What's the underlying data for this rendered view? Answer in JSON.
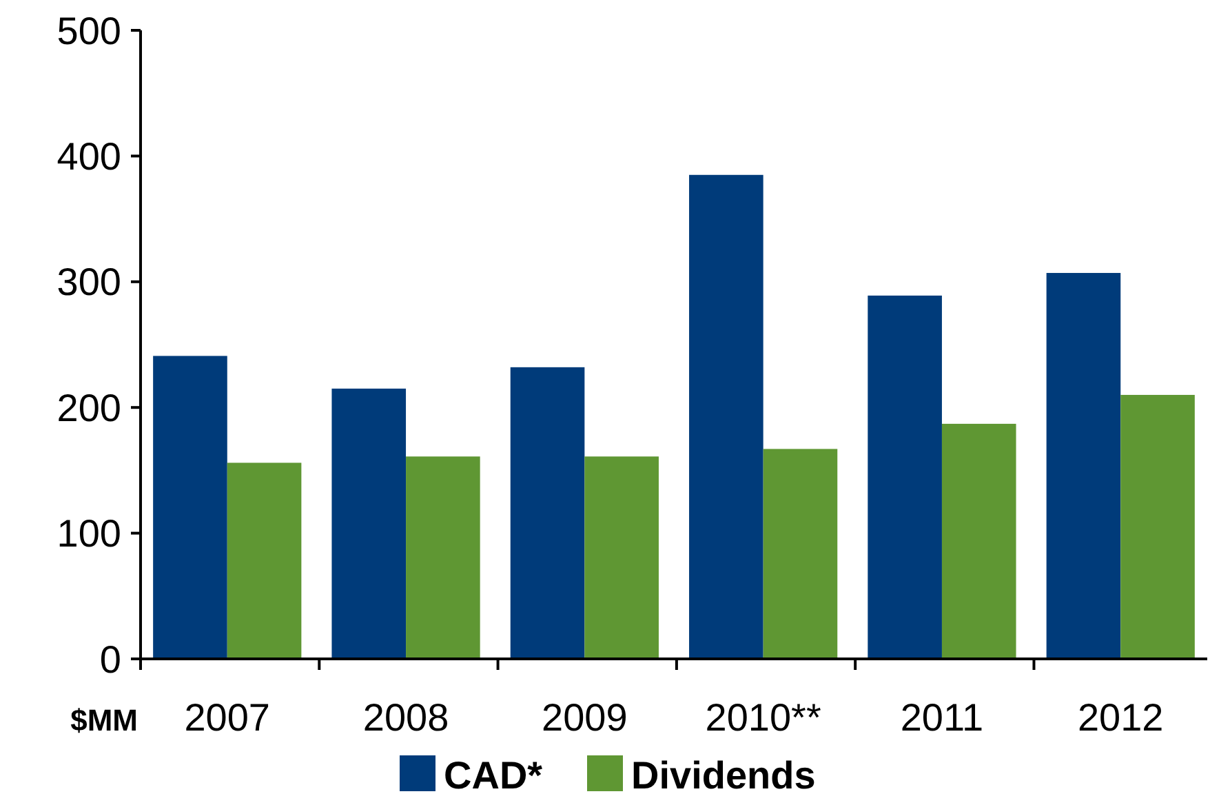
{
  "chart_data": {
    "type": "bar",
    "categories": [
      "2007",
      "2008",
      "2009",
      "2010**",
      "2011",
      "2012"
    ],
    "series": [
      {
        "name": "CAD*",
        "color": "#003b7a",
        "values": [
          241,
          215,
          232,
          385,
          289,
          307
        ]
      },
      {
        "name": "Dividends",
        "color": "#5f9733",
        "values": [
          156,
          161,
          161,
          167,
          187,
          210
        ]
      }
    ],
    "ylabel": "$MM",
    "ylim": [
      0,
      500
    ],
    "yticks": [
      0,
      100,
      200,
      300,
      400,
      500
    ],
    "legend": "bottom",
    "grid": false
  }
}
